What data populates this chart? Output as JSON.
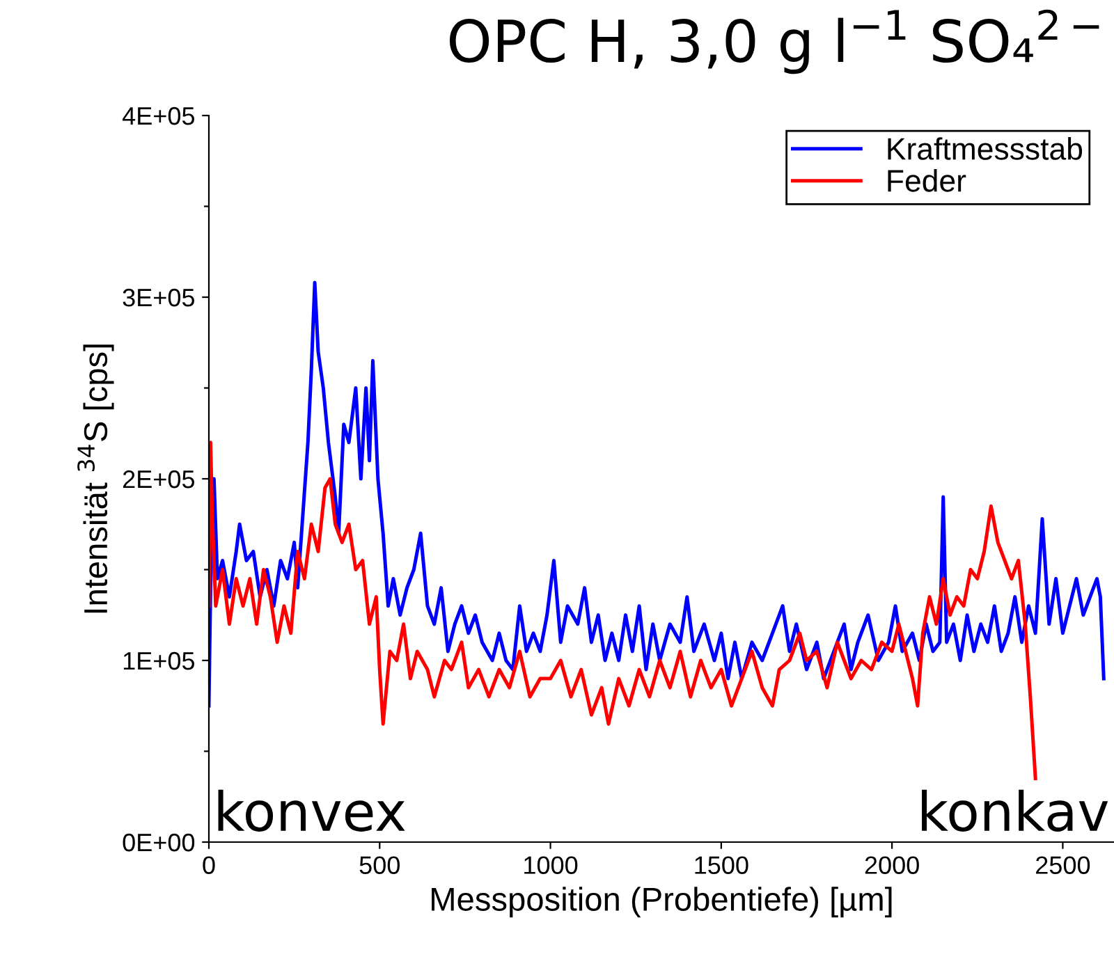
{
  "chart_data": {
    "type": "line",
    "title": "OPC H, 3,0 g l$^{−1}$ SO₄$^{2−}$",
    "xlabel": "Messposition (Probentiefe) [µm]",
    "ylabel": "Intensität $^{34}$S [cps]",
    "xlim": [
      0,
      2650
    ],
    "xticks": [
      0,
      500,
      1000,
      1500,
      2000,
      2500
    ],
    "ylim": [
      0,
      400000
    ],
    "yticks": [
      {
        "value": 0,
        "label": "0E+00"
      },
      {
        "value": 50000,
        "label": null
      },
      {
        "value": 100000,
        "label": "1E+05"
      },
      {
        "value": 150000,
        "label": null
      },
      {
        "value": 200000,
        "label": "2E+05"
      },
      {
        "value": 250000,
        "label": null
      },
      {
        "value": 300000,
        "label": "3E+05"
      },
      {
        "value": 350000,
        "label": null
      },
      {
        "value": 400000,
        "label": "4E+05"
      }
    ],
    "legend": "top right",
    "grid": false,
    "marker": "none",
    "line_style": "solid",
    "annotations": [
      "konvex",
      "konkav"
    ],
    "series": [
      {
        "name": "Kraftmessstab",
        "color": "#0000ff",
        "x": [
          0,
          5,
          15,
          25,
          40,
          60,
          80,
          90,
          110,
          130,
          150,
          170,
          190,
          210,
          230,
          250,
          260,
          275,
          290,
          300,
          310,
          320,
          335,
          350,
          370,
          380,
          395,
          410,
          430,
          445,
          460,
          470,
          480,
          495,
          510,
          525,
          540,
          560,
          580,
          600,
          620,
          640,
          660,
          680,
          700,
          720,
          740,
          760,
          780,
          800,
          830,
          850,
          870,
          890,
          910,
          930,
          950,
          970,
          990,
          1010,
          1030,
          1050,
          1080,
          1100,
          1120,
          1140,
          1160,
          1180,
          1200,
          1220,
          1240,
          1260,
          1280,
          1300,
          1320,
          1350,
          1380,
          1400,
          1420,
          1450,
          1480,
          1500,
          1520,
          1540,
          1560,
          1590,
          1620,
          1650,
          1680,
          1700,
          1720,
          1750,
          1780,
          1800,
          1830,
          1860,
          1880,
          1900,
          1930,
          1960,
          1990,
          2010,
          2030,
          2060,
          2080,
          2100,
          2120,
          2140,
          2150,
          2160,
          2180,
          2200,
          2220,
          2240,
          2260,
          2280,
          2300,
          2320,
          2340,
          2360,
          2380,
          2400,
          2420,
          2440,
          2460,
          2480,
          2500,
          2520,
          2540,
          2560,
          2580,
          2600,
          2610,
          2620
        ],
        "values": [
          75000,
          140000,
          200000,
          145000,
          155000,
          135000,
          160000,
          175000,
          155000,
          160000,
          135000,
          150000,
          130000,
          155000,
          145000,
          165000,
          140000,
          180000,
          220000,
          260000,
          308000,
          270000,
          250000,
          220000,
          190000,
          170000,
          230000,
          220000,
          250000,
          200000,
          250000,
          210000,
          265000,
          200000,
          170000,
          130000,
          145000,
          125000,
          140000,
          150000,
          170000,
          130000,
          120000,
          140000,
          105000,
          120000,
          130000,
          115000,
          125000,
          110000,
          100000,
          115000,
          100000,
          95000,
          130000,
          105000,
          115000,
          105000,
          125000,
          155000,
          110000,
          130000,
          120000,
          140000,
          110000,
          125000,
          100000,
          115000,
          100000,
          125000,
          105000,
          130000,
          95000,
          120000,
          100000,
          120000,
          110000,
          135000,
          105000,
          120000,
          100000,
          115000,
          90000,
          110000,
          90000,
          110000,
          100000,
          115000,
          130000,
          105000,
          120000,
          95000,
          110000,
          90000,
          105000,
          120000,
          95000,
          110000,
          125000,
          100000,
          110000,
          130000,
          105000,
          115000,
          100000,
          120000,
          105000,
          110000,
          190000,
          110000,
          120000,
          100000,
          125000,
          105000,
          120000,
          110000,
          130000,
          105000,
          115000,
          135000,
          110000,
          130000,
          115000,
          178000,
          120000,
          145000,
          115000,
          130000,
          145000,
          125000,
          135000,
          145000,
          135000,
          90000
        ]
      },
      {
        "name": "Feder",
        "color": "#ff0000",
        "x": [
          0,
          5,
          10,
          20,
          40,
          60,
          80,
          100,
          120,
          140,
          160,
          180,
          200,
          220,
          240,
          260,
          280,
          300,
          320,
          340,
          355,
          370,
          390,
          410,
          430,
          450,
          470,
          490,
          500,
          510,
          530,
          550,
          570,
          590,
          610,
          640,
          660,
          690,
          710,
          740,
          760,
          790,
          820,
          850,
          880,
          910,
          940,
          970,
          1000,
          1030,
          1060,
          1090,
          1120,
          1150,
          1170,
          1200,
          1230,
          1260,
          1290,
          1320,
          1350,
          1380,
          1410,
          1440,
          1470,
          1500,
          1530,
          1560,
          1590,
          1620,
          1650,
          1670,
          1700,
          1730,
          1750,
          1780,
          1810,
          1840,
          1860,
          1880,
          1910,
          1940,
          1970,
          2000,
          2020,
          2040,
          2060,
          2075,
          2090,
          2110,
          2130,
          2150,
          2170,
          2190,
          2210,
          2230,
          2250,
          2270,
          2290,
          2310,
          2330,
          2350,
          2370,
          2390,
          2405,
          2420
        ],
        "values": [
          130000,
          220000,
          180000,
          130000,
          150000,
          120000,
          145000,
          130000,
          145000,
          120000,
          150000,
          135000,
          110000,
          130000,
          115000,
          160000,
          145000,
          175000,
          160000,
          195000,
          200000,
          175000,
          165000,
          175000,
          150000,
          155000,
          120000,
          135000,
          95000,
          65000,
          105000,
          100000,
          120000,
          90000,
          105000,
          95000,
          80000,
          100000,
          95000,
          110000,
          85000,
          95000,
          80000,
          95000,
          85000,
          105000,
          80000,
          90000,
          90000,
          100000,
          80000,
          95000,
          70000,
          85000,
          65000,
          90000,
          75000,
          95000,
          80000,
          100000,
          85000,
          105000,
          80000,
          100000,
          85000,
          95000,
          75000,
          90000,
          105000,
          85000,
          75000,
          95000,
          100000,
          115000,
          100000,
          105000,
          85000,
          110000,
          100000,
          90000,
          100000,
          95000,
          110000,
          105000,
          120000,
          105000,
          90000,
          75000,
          115000,
          135000,
          120000,
          145000,
          125000,
          135000,
          130000,
          150000,
          145000,
          160000,
          185000,
          165000,
          155000,
          145000,
          155000,
          120000,
          80000,
          35000
        ]
      }
    ]
  }
}
